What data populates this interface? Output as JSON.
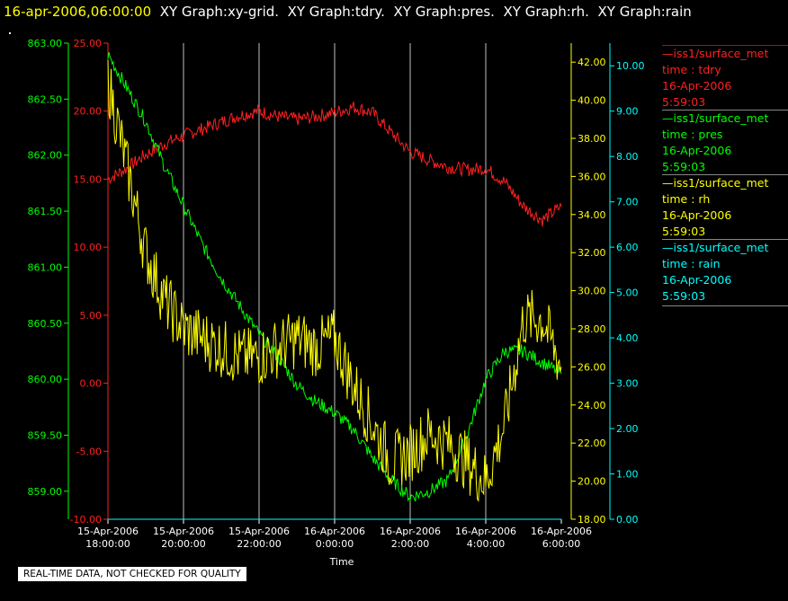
{
  "header": {
    "timestamp": "16-apr-2006,06:00:00",
    "graphs": [
      "XY Graph:xy-grid.",
      "XY Graph:tdry.",
      "XY Graph:pres.",
      "XY Graph:rh.",
      "XY Graph:rain"
    ]
  },
  "legend": [
    {
      "source": "—iss1/surface_met",
      "label": "time : tdry",
      "date": "16-Apr-2006",
      "time": "5:59:03",
      "color": "#ff2020"
    },
    {
      "source": "—iss1/surface_met",
      "label": "time : pres",
      "date": "16-Apr-2006",
      "time": "5:59:03",
      "color": "#00ff00"
    },
    {
      "source": "—iss1/surface_met",
      "label": "time : rh",
      "date": "16-Apr-2006",
      "time": "5:59:03",
      "color": "#ffff00"
    },
    {
      "source": "—iss1/surface_met",
      "label": "time : rain",
      "date": "16-Apr-2006",
      "time": "5:59:03",
      "color": "#00ffff"
    }
  ],
  "footer_note": "REAL-TIME DATA, NOT CHECKED FOR QUALITY",
  "chart_data": {
    "type": "line",
    "title": "",
    "xlabel": "Time",
    "grid": true,
    "x_ticks": [
      {
        "date": "15-Apr-2006",
        "time": "18:00:00"
      },
      {
        "date": "15-Apr-2006",
        "time": "20:00:00"
      },
      {
        "date": "15-Apr-2006",
        "time": "22:00:00"
      },
      {
        "date": "16-Apr-2006",
        "time": "0:00:00"
      },
      {
        "date": "16-Apr-2006",
        "time": "2:00:00"
      },
      {
        "date": "16-Apr-2006",
        "time": "4:00:00"
      },
      {
        "date": "16-Apr-2006",
        "time": "6:00:00"
      }
    ],
    "xlim": [
      "2006-04-15T18:00:00",
      "2006-04-16T06:00:00"
    ],
    "axes": {
      "pres": {
        "range": [
          858.75,
          863.0
        ],
        "ticks": [
          "863.00",
          "862.50",
          "862.00",
          "861.50",
          "861.00",
          "860.50",
          "860.00",
          "859.50",
          "859.00"
        ],
        "color": "#00ff00"
      },
      "tdry": {
        "range": [
          -10,
          25
        ],
        "ticks": [
          "25.00",
          "20.00",
          "15.00",
          "10.00",
          "5.00",
          "0.00",
          "-5.00",
          "-10.00"
        ],
        "color": "#ff2020"
      },
      "rh": {
        "range": [
          18,
          43
        ],
        "ticks": [
          "42.00",
          "40.00",
          "38.00",
          "36.00",
          "34.00",
          "32.00",
          "30.00",
          "28.00",
          "26.00",
          "24.00",
          "22.00",
          "20.00",
          "18.00"
        ],
        "color": "#ffff00"
      },
      "rain": {
        "range": [
          0,
          10.5
        ],
        "ticks": [
          "10.00",
          "9.00",
          "8.00",
          "7.00",
          "6.00",
          "5.00",
          "4.00",
          "3.00",
          "2.00",
          "1.00",
          "0.00"
        ],
        "color": "#00ffff"
      }
    },
    "series": [
      {
        "name": "tdry",
        "axis": "tdry",
        "color": "#ff2020",
        "x": [
          "2006-04-15T18:00",
          "2006-04-15T18:30",
          "2006-04-15T19:00",
          "2006-04-15T19:30",
          "2006-04-15T20:00",
          "2006-04-15T20:30",
          "2006-04-15T21:00",
          "2006-04-15T21:30",
          "2006-04-15T22:00",
          "2006-04-15T22:30",
          "2006-04-15T23:00",
          "2006-04-15T23:30",
          "2006-04-16T00:00",
          "2006-04-16T00:30",
          "2006-04-16T01:00",
          "2006-04-16T01:30",
          "2006-04-16T02:00",
          "2006-04-16T02:30",
          "2006-04-16T03:00",
          "2006-04-16T03:30",
          "2006-04-16T04:00",
          "2006-04-16T04:30",
          "2006-04-16T05:00",
          "2006-04-16T05:30",
          "2006-04-16T06:00"
        ],
        "y": [
          15.0,
          15.8,
          16.8,
          17.6,
          18.2,
          18.7,
          19.2,
          19.7,
          20.0,
          19.6,
          19.4,
          19.6,
          19.9,
          20.3,
          19.9,
          18.4,
          17.0,
          16.4,
          15.9,
          15.7,
          15.8,
          14.8,
          13.0,
          12.0,
          13.0
        ]
      },
      {
        "name": "pres",
        "axis": "pres",
        "color": "#00ff00",
        "x": [
          "2006-04-15T18:00",
          "2006-04-15T18:30",
          "2006-04-15T19:00",
          "2006-04-15T19:30",
          "2006-04-15T20:00",
          "2006-04-15T20:30",
          "2006-04-15T21:00",
          "2006-04-15T21:30",
          "2006-04-15T22:00",
          "2006-04-15T22:30",
          "2006-04-15T23:00",
          "2006-04-15T23:30",
          "2006-04-16T00:00",
          "2006-04-16T00:30",
          "2006-04-16T01:00",
          "2006-04-16T01:30",
          "2006-04-16T02:00",
          "2006-04-16T02:30",
          "2006-04-16T03:00",
          "2006-04-16T03:30",
          "2006-04-16T04:00",
          "2006-04-16T04:30",
          "2006-04-16T05:00",
          "2006-04-16T05:30",
          "2006-04-16T06:00"
        ],
        "y": [
          862.9,
          862.6,
          862.3,
          861.9,
          861.55,
          861.2,
          860.9,
          860.65,
          860.4,
          860.2,
          859.95,
          859.8,
          859.7,
          859.55,
          859.3,
          859.1,
          858.95,
          859.0,
          859.1,
          859.5,
          860.0,
          860.25,
          860.25,
          860.15,
          860.05
        ]
      },
      {
        "name": "rh",
        "axis": "rh",
        "color": "#ffff00",
        "x": [
          "2006-04-15T18:00",
          "2006-04-15T18:30",
          "2006-04-15T19:00",
          "2006-04-15T19:30",
          "2006-04-15T20:00",
          "2006-04-15T20:30",
          "2006-04-15T21:00",
          "2006-04-15T21:30",
          "2006-04-15T22:00",
          "2006-04-15T22:30",
          "2006-04-15T23:00",
          "2006-04-15T23:30",
          "2006-04-16T00:00",
          "2006-04-16T00:30",
          "2006-04-16T01:00",
          "2006-04-16T01:30",
          "2006-04-16T02:00",
          "2006-04-16T02:30",
          "2006-04-16T03:00",
          "2006-04-16T03:30",
          "2006-04-16T04:00",
          "2006-04-16T04:30",
          "2006-04-16T05:00",
          "2006-04-16T05:30",
          "2006-04-16T06:00"
        ],
        "y": [
          41.0,
          36.5,
          32.0,
          29.5,
          28.0,
          27.5,
          27.0,
          26.5,
          26.5,
          27.0,
          27.5,
          27.0,
          27.5,
          25.0,
          23.0,
          21.0,
          21.5,
          22.5,
          22.0,
          21.0,
          20.0,
          23.0,
          28.5,
          28.5,
          26.0
        ]
      },
      {
        "name": "rain",
        "axis": "rain",
        "color": "#00ffff",
        "x": [
          "2006-04-15T18:00",
          "2006-04-16T06:00"
        ],
        "y": [
          0.0,
          0.0
        ]
      }
    ]
  }
}
